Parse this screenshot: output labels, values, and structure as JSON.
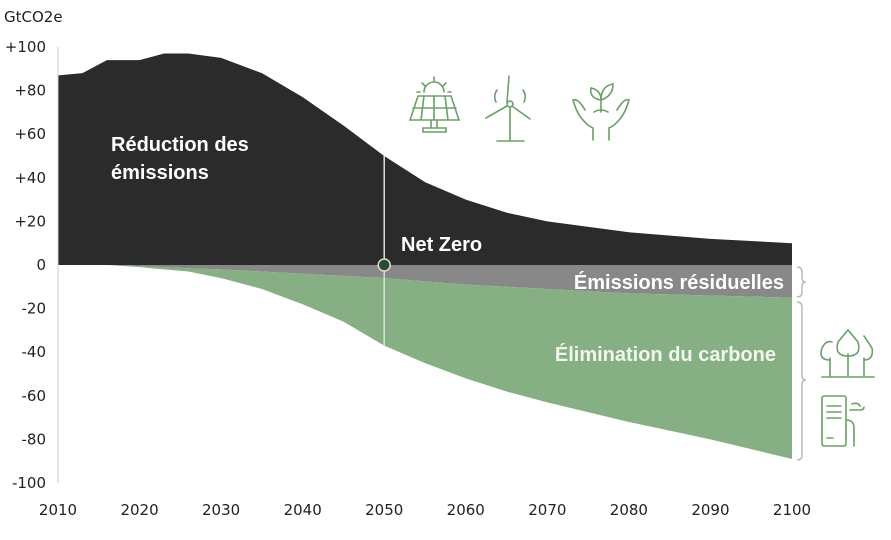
{
  "chart_data": {
    "type": "area",
    "ylabel": "GtCO2e",
    "xlim": [
      2010,
      2100
    ],
    "ylim": [
      -100,
      100
    ],
    "x_ticks": [
      "2010",
      "2020",
      "2030",
      "2040",
      "2050",
      "2060",
      "2070",
      "2080",
      "2090",
      "2100"
    ],
    "y_ticks": [
      "+100",
      "+80",
      "+60",
      "+40",
      "+20",
      "0",
      "-20",
      "-40",
      "-60",
      "-80",
      "-100"
    ],
    "x": [
      2010,
      2013,
      2016,
      2020,
      2023,
      2026,
      2030,
      2035,
      2040,
      2045,
      2050,
      2055,
      2060,
      2065,
      2070,
      2080,
      2090,
      2100
    ],
    "series": [
      {
        "name": "Réduction des émissions",
        "color": "#2b2b2b",
        "values": [
          87,
          88,
          94,
          94,
          97,
          97,
          95,
          88,
          77,
          64,
          50,
          38,
          30,
          24,
          20,
          15,
          12,
          10
        ]
      },
      {
        "name": "Émissions résiduelles",
        "color": "#888888",
        "values": [
          0,
          0,
          0,
          -0.5,
          -1,
          -1.5,
          -2,
          -3,
          -4,
          -5,
          -6,
          -7.5,
          -9,
          -10,
          -11,
          -13,
          -14,
          -15
        ]
      },
      {
        "name": "Élimination du carbone",
        "color": "#86b083",
        "values": [
          0,
          0,
          0,
          -1,
          -2,
          -3,
          -6,
          -11,
          -18,
          -26,
          -37,
          -45,
          -52,
          -58,
          -63,
          -72,
          -80,
          -89
        ]
      }
    ],
    "annotations": {
      "reduction_line1": "Réduction des",
      "reduction_line2": "émissions",
      "net_zero": "Net Zero",
      "net_zero_year": 2050,
      "residual": "Émissions résiduelles",
      "removal": "Élimination du carbone"
    },
    "icons": [
      "solar-panel-icon",
      "wind-turbine-icon",
      "hands-plant-icon",
      "trees-icon",
      "direct-air-capture-icon"
    ],
    "accent_color": "#6aa067"
  }
}
